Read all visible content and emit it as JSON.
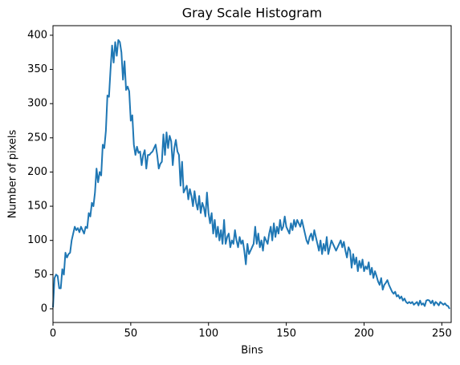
{
  "chart_data": {
    "type": "line",
    "title": "Gray Scale Histogram",
    "xlabel": "Bins",
    "ylabel": "Number of pixels",
    "color": "#1f77b4",
    "x": [
      0,
      1,
      2,
      3,
      4,
      5,
      6,
      7,
      8,
      9,
      10,
      11,
      12,
      13,
      14,
      15,
      16,
      17,
      18,
      19,
      20,
      21,
      22,
      23,
      24,
      25,
      26,
      27,
      28,
      29,
      30,
      31,
      32,
      33,
      34,
      35,
      36,
      37,
      38,
      39,
      40,
      41,
      42,
      43,
      44,
      45,
      46,
      47,
      48,
      49,
      50,
      51,
      52,
      53,
      54,
      55,
      56,
      57,
      58,
      59,
      60,
      61,
      62,
      63,
      64,
      65,
      66,
      67,
      68,
      69,
      70,
      71,
      72,
      73,
      74,
      75,
      76,
      77,
      78,
      79,
      80,
      81,
      82,
      83,
      84,
      85,
      86,
      87,
      88,
      89,
      90,
      91,
      92,
      93,
      94,
      95,
      96,
      97,
      98,
      99,
      100,
      101,
      102,
      103,
      104,
      105,
      106,
      107,
      108,
      109,
      110,
      111,
      112,
      113,
      114,
      115,
      116,
      117,
      118,
      119,
      120,
      121,
      122,
      123,
      124,
      125,
      126,
      127,
      128,
      129,
      130,
      131,
      132,
      133,
      134,
      135,
      136,
      137,
      138,
      139,
      140,
      141,
      142,
      143,
      144,
      145,
      146,
      147,
      148,
      149,
      150,
      151,
      152,
      153,
      154,
      155,
      156,
      157,
      158,
      159,
      160,
      161,
      162,
      163,
      164,
      165,
      166,
      167,
      168,
      169,
      170,
      171,
      172,
      173,
      174,
      175,
      176,
      177,
      178,
      179,
      180,
      181,
      182,
      183,
      184,
      185,
      186,
      187,
      188,
      189,
      190,
      191,
      192,
      193,
      194,
      195,
      196,
      197,
      198,
      199,
      200,
      201,
      202,
      203,
      204,
      205,
      206,
      207,
      208,
      209,
      210,
      211,
      212,
      213,
      214,
      215,
      216,
      217,
      218,
      219,
      220,
      221,
      222,
      223,
      224,
      225,
      226,
      227,
      228,
      229,
      230,
      231,
      232,
      233,
      234,
      235,
      236,
      237,
      238,
      239,
      240,
      241,
      242,
      243,
      244,
      245,
      246,
      247,
      248,
      249,
      250,
      251,
      252,
      253,
      254,
      255
    ],
    "values": [
      2,
      45,
      50,
      48,
      30,
      30,
      58,
      50,
      82,
      75,
      80,
      82,
      100,
      110,
      120,
      115,
      118,
      112,
      120,
      115,
      110,
      120,
      118,
      140,
      135,
      155,
      150,
      170,
      205,
      185,
      200,
      195,
      240,
      235,
      260,
      312,
      310,
      350,
      385,
      360,
      390,
      370,
      393,
      390,
      375,
      335,
      362,
      320,
      325,
      318,
      275,
      283,
      240,
      225,
      237,
      228,
      230,
      210,
      225,
      232,
      205,
      225,
      225,
      228,
      230,
      235,
      240,
      225,
      205,
      212,
      215,
      255,
      225,
      258,
      235,
      253,
      245,
      210,
      235,
      247,
      230,
      225,
      180,
      215,
      170,
      175,
      180,
      160,
      175,
      165,
      150,
      172,
      155,
      145,
      165,
      140,
      155,
      148,
      135,
      170,
      140,
      125,
      140,
      110,
      130,
      105,
      120,
      100,
      115,
      95,
      130,
      95,
      105,
      110,
      90,
      100,
      95,
      115,
      100,
      90,
      105,
      95,
      100,
      85,
      65,
      95,
      80,
      85,
      90,
      95,
      120,
      95,
      110,
      90,
      100,
      85,
      105,
      100,
      95,
      110,
      120,
      100,
      125,
      105,
      120,
      110,
      130,
      115,
      120,
      135,
      120,
      115,
      110,
      125,
      115,
      130,
      120,
      130,
      125,
      120,
      130,
      120,
      110,
      100,
      95,
      105,
      110,
      100,
      115,
      105,
      95,
      85,
      100,
      80,
      95,
      85,
      105,
      80,
      90,
      100,
      95,
      90,
      85,
      90,
      95,
      100,
      90,
      98,
      85,
      75,
      90,
      85,
      60,
      80,
      65,
      75,
      55,
      70,
      60,
      72,
      55,
      62,
      58,
      68,
      50,
      60,
      45,
      55,
      48,
      40,
      35,
      45,
      28,
      35,
      38,
      42,
      35,
      30,
      25,
      22,
      25,
      18,
      20,
      15,
      18,
      12,
      15,
      10,
      8,
      10,
      8,
      10,
      6,
      8,
      10,
      5,
      12,
      6,
      8,
      4,
      12,
      13,
      12,
      8,
      12,
      5,
      10,
      8,
      5,
      10,
      8,
      6,
      8,
      5,
      4,
      0
    ],
    "xlim": [
      0,
      256
    ],
    "xticks": [
      0,
      50,
      100,
      150,
      200,
      250
    ],
    "ylim": [
      -20,
      414
    ],
    "yticks": [
      0,
      50,
      100,
      150,
      200,
      250,
      300,
      350,
      400
    ]
  }
}
